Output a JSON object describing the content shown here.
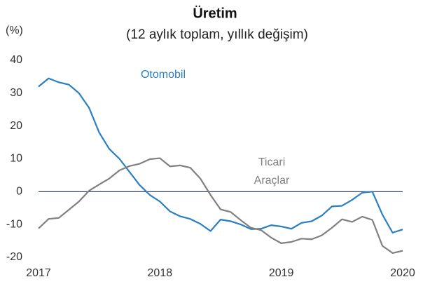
{
  "chart_data": {
    "type": "line",
    "title": "Üretim",
    "subtitle": "(12 aylık toplam, yıllık değişim)",
    "y_label": "(%)",
    "xlim": [
      2017,
      2020
    ],
    "xticks": [
      2017,
      2018,
      2019,
      2020
    ],
    "ylim": [
      -20,
      40
    ],
    "yticks": [
      -20,
      -10,
      0,
      10,
      20,
      30,
      40
    ],
    "zero_line": true,
    "x": [
      2017,
      2017.083,
      2017.167,
      2017.25,
      2017.333,
      2017.417,
      2017.5,
      2017.583,
      2017.667,
      2017.75,
      2017.833,
      2017.917,
      2018,
      2018.083,
      2018.167,
      2018.25,
      2018.333,
      2018.417,
      2018.5,
      2018.583,
      2018.667,
      2018.75,
      2018.833,
      2018.917,
      2019,
      2019.083,
      2019.167,
      2019.25,
      2019.333,
      2019.417,
      2019.5,
      2019.583,
      2019.667,
      2019.75,
      2019.833,
      2019.917,
      2020
    ],
    "series": [
      {
        "color": "#2a7fc0",
        "values": [
          32,
          34.5,
          33.3,
          32.6,
          30,
          25.5,
          18,
          13,
          10,
          6,
          2,
          -1,
          -3,
          -6,
          -7.5,
          -8.3,
          -9.8,
          -12,
          -8.5,
          -9,
          -10,
          -11.4,
          -11.3,
          -10.2,
          -10.6,
          -11.3,
          -9.5,
          -9,
          -7.3,
          -4.5,
          -4.3,
          -2.5,
          -0.3,
          0,
          -7,
          -12.5,
          -11.5
        ]
      },
      {
        "color": "#808080",
        "values": [
          -11.2,
          -8.3,
          -8,
          -5.5,
          -3,
          0.3,
          2.2,
          4,
          6.5,
          7.8,
          8.5,
          9.9,
          10.2,
          7.7,
          8,
          7.3,
          4,
          -1,
          -5.4,
          -6.2,
          -8.7,
          -11,
          -11.7,
          -14,
          -15.7,
          -15.3,
          -14.3,
          -14.5,
          -13.3,
          -11,
          -8.4,
          -9.2,
          -7.6,
          -8.6,
          -16.5,
          -18.7,
          -18
        ]
      }
    ],
    "annotations": [
      {
        "text": "Otomobil",
        "color": "#2a7fc0"
      },
      {
        "text": "Ticari",
        "color": "#808080"
      },
      {
        "text": "Araçlar",
        "color": "#808080"
      }
    ]
  }
}
